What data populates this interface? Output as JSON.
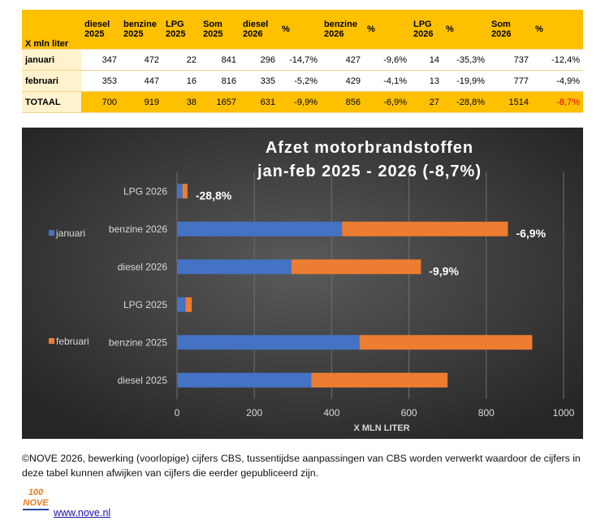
{
  "table": {
    "header": [
      "X mln liter",
      "diesel 2025",
      "benzine 2025",
      "LPG 2025",
      "Som 2025",
      "diesel 2026",
      "%",
      "benzine 2026",
      "%",
      "LPG 2026",
      "%",
      "Som 2026",
      "%"
    ],
    "rows": [
      [
        "januari",
        "347",
        "472",
        "22",
        "841",
        "296",
        "-14,7%",
        "427",
        "-9,6%",
        "14",
        "-35,3%",
        "737",
        "-12,4%"
      ],
      [
        "februari",
        "353",
        "447",
        "16",
        "816",
        "335",
        "-5,2%",
        "429",
        "-4,1%",
        "13",
        "-19,9%",
        "777",
        "-4,9%"
      ],
      [
        "TOTAAL",
        "700",
        "919",
        "38",
        "1657",
        "631",
        "-9,9%",
        "856",
        "-6,9%",
        "27",
        "-28,8%",
        "1514",
        "-8,7%"
      ]
    ]
  },
  "chart_data": {
    "type": "bar",
    "orientation": "horizontal",
    "stacked": true,
    "title": "Afzet motorbrandstoffen",
    "subtitle": "jan-feb 2025 - 2026 (-8,7%)",
    "categories": [
      "LPG 2026",
      "benzine 2026",
      "diesel 2026",
      "LPG 2025",
      "benzine 2025",
      "diesel 2025"
    ],
    "series": [
      {
        "name": "januari",
        "color": "#4472c4",
        "values": [
          14,
          427,
          296,
          22,
          472,
          347
        ]
      },
      {
        "name": "februari",
        "color": "#ed7d31",
        "values": [
          13,
          429,
          335,
          16,
          447,
          353
        ]
      }
    ],
    "annotations": [
      {
        "category": "LPG 2026",
        "text": "-28,8%"
      },
      {
        "category": "benzine 2026",
        "text": "-6,9%"
      },
      {
        "category": "diesel 2026",
        "text": "-9,9%"
      }
    ],
    "xlabel": "X MLN LITER",
    "xlim": [
      0,
      1000
    ],
    "xticks": [
      0,
      200,
      400,
      600,
      800,
      1000
    ],
    "grid": true,
    "legend": "left"
  },
  "footer": {
    "note": "©NOVE 2026, bewerking (voorlopige) cijfers CBS, tussentijdse aanpassingen van CBS worden verwerkt waardoor de cijfers in deze tabel kunnen afwijken van cijfers die eerder gepubliceerd zijn.",
    "logo": [
      "100",
      "NOVE"
    ],
    "link": "www.nove.nl"
  }
}
